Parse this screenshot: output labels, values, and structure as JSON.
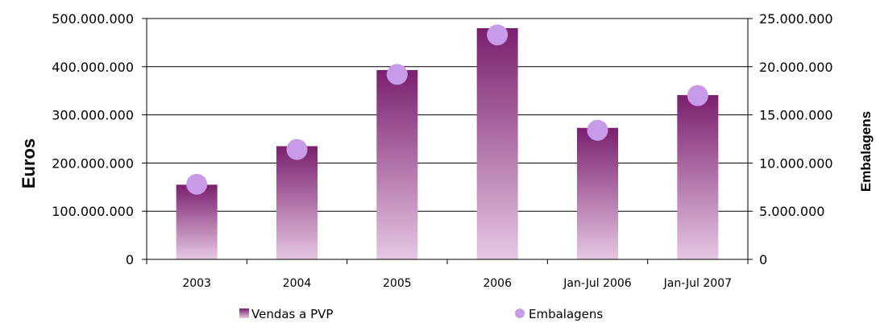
{
  "chart_data": {
    "type": "bar",
    "categories": [
      "2003",
      "2004",
      "2005",
      "2006",
      "Jan-Jul 2006",
      "Jan-Jul 2007"
    ],
    "series": [
      {
        "name": "Vendas a PVP",
        "type": "bar",
        "axis": "left",
        "values": [
          155000000,
          235000000,
          393000000,
          480000000,
          273000000,
          341000000
        ],
        "color_top": "#7a1f6e",
        "color_bottom": "#e6c7e3"
      },
      {
        "name": "Embalagens",
        "type": "scatter",
        "axis": "right",
        "values": [
          7800000,
          11400000,
          19200000,
          23300000,
          13400000,
          17000000
        ],
        "color": "#c89be8"
      }
    ],
    "ylabel": "Euros",
    "y2label": "Embalagens",
    "ylim": [
      0,
      500000000
    ],
    "y2lim": [
      0,
      25000000
    ],
    "yticks": [
      "0",
      "100.000.000",
      "200.000.000",
      "300.000.000",
      "400.000.000",
      "500.000.000"
    ],
    "y2ticks": [
      "0",
      "5.000.000",
      "10.000.000",
      "15.000.000",
      "20.000.000",
      "25.000.000"
    ],
    "grid": true,
    "legend_position": "bottom"
  }
}
